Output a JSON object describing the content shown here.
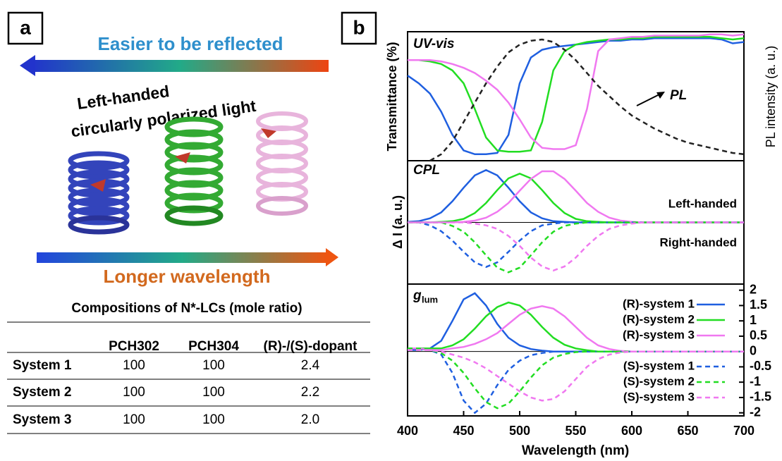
{
  "panel_a": {
    "label": "a",
    "top_arrow_text": "Easier to be reflected",
    "helix_text_1": "Left-handed",
    "helix_text_2": "circularly polarized light",
    "bottom_arrow_text": "Longer wavelength",
    "table": {
      "title": "Compositions of N*-LCs (mole ratio)",
      "columns": [
        "PCH302",
        "PCH304",
        "(R)-/(S)-dopant"
      ],
      "rows": [
        [
          "System 1",
          "100",
          "100",
          "2.4"
        ],
        [
          "System 2",
          "100",
          "100",
          "2.2"
        ],
        [
          "System 3",
          "100",
          "100",
          "2.0"
        ]
      ]
    }
  },
  "panel_b_label": "b",
  "chart_data": [
    {
      "type": "line",
      "title": "UV-vis",
      "ylabel": "Transmittance (%)",
      "y2label": "PL intensity (a. u.)",
      "annotation": "PL",
      "ylim": [
        0,
        100
      ],
      "y2lim": [
        0,
        1
      ],
      "x": [
        400,
        410,
        420,
        430,
        440,
        450,
        460,
        470,
        480,
        490,
        500,
        510,
        520,
        530,
        540,
        550,
        560,
        570,
        580,
        590,
        600,
        610,
        620,
        630,
        640,
        650,
        660,
        670,
        680,
        690,
        700
      ],
      "series": [
        {
          "color": "#1f5fe0",
          "style": "solid",
          "values": [
            66,
            60,
            52,
            38,
            20,
            8,
            5,
            5,
            6,
            20,
            60,
            80,
            86,
            88,
            89,
            90,
            91,
            92,
            93,
            93,
            94,
            94,
            95,
            95,
            95,
            95,
            95,
            95,
            94,
            91,
            92
          ]
        },
        {
          "color": "#22dd22",
          "style": "solid",
          "values": [
            78,
            78,
            77,
            75,
            70,
            60,
            40,
            18,
            8,
            7,
            7,
            8,
            30,
            70,
            85,
            90,
            92,
            93,
            94,
            94,
            95,
            95,
            96,
            96,
            96,
            96,
            96,
            96,
            95,
            94,
            95
          ]
        },
        {
          "color": "#f078f0",
          "style": "solid",
          "values": [
            78,
            78,
            78,
            77,
            75,
            72,
            68,
            62,
            55,
            45,
            32,
            18,
            10,
            9,
            9,
            12,
            40,
            85,
            94,
            95,
            96,
            96,
            97,
            97,
            97,
            97,
            97,
            98,
            98,
            97,
            98
          ]
        },
        {
          "color": "#222222",
          "style": "dashed",
          "axis": "y2",
          "values": [
            null,
            null,
            0,
            0.05,
            0.15,
            0.3,
            0.45,
            0.6,
            0.73,
            0.84,
            0.9,
            0.93,
            0.94,
            0.92,
            0.86,
            0.78,
            0.68,
            0.58,
            0.5,
            0.42,
            0.35,
            0.3,
            0.25,
            0.21,
            0.17,
            0.14,
            0.12,
            0.1,
            0.08,
            0.06,
            0.05
          ]
        }
      ]
    },
    {
      "type": "line",
      "title": "CPL",
      "ylabel": "Δ I  (a. u.)",
      "annotations": [
        "Left-handed",
        "Right-handed"
      ],
      "ylim": [
        -1.05,
        1.05
      ],
      "x": [
        400,
        410,
        420,
        430,
        440,
        450,
        460,
        470,
        480,
        490,
        500,
        510,
        520,
        530,
        540,
        550,
        560,
        570,
        580,
        590,
        600,
        610,
        620,
        630,
        640,
        650,
        660,
        670,
        680,
        690,
        700
      ],
      "series": [
        {
          "color": "#1f5fe0",
          "style": "solid",
          "values": [
            0.01,
            0.02,
            0.07,
            0.17,
            0.36,
            0.59,
            0.8,
            0.89,
            0.8,
            0.59,
            0.36,
            0.17,
            0.07,
            0.02,
            0.01,
            0,
            0,
            0,
            0,
            0,
            0,
            0,
            0,
            0,
            0,
            0,
            0,
            0,
            0,
            0,
            0
          ]
        },
        {
          "color": "#22dd22",
          "style": "solid",
          "values": [
            0,
            0,
            0,
            0.01,
            0.02,
            0.06,
            0.16,
            0.33,
            0.55,
            0.75,
            0.83,
            0.75,
            0.55,
            0.33,
            0.16,
            0.06,
            0.02,
            0.01,
            0,
            0,
            0,
            0,
            0,
            0,
            0,
            0,
            0,
            0,
            0,
            0,
            0
          ]
        },
        {
          "color": "#f078f0",
          "style": "solid",
          "values": [
            0,
            0,
            0,
            0,
            0,
            0.01,
            0.03,
            0.08,
            0.18,
            0.33,
            0.54,
            0.74,
            0.87,
            0.87,
            0.74,
            0.54,
            0.33,
            0.18,
            0.08,
            0.03,
            0.01,
            0,
            0,
            0,
            0,
            0,
            0,
            0,
            0,
            0,
            0
          ]
        },
        {
          "color": "#1f5fe0",
          "style": "dashed",
          "values": [
            0,
            0,
            -0.05,
            -0.15,
            -0.31,
            -0.5,
            -0.68,
            -0.76,
            -0.68,
            -0.5,
            -0.31,
            -0.15,
            -0.05,
            -0.02,
            0,
            0,
            0,
            0,
            0,
            0,
            0,
            0,
            0,
            0,
            0,
            0,
            0,
            0,
            0,
            0,
            0
          ]
        },
        {
          "color": "#22dd22",
          "style": "dashed",
          "values": [
            0,
            0,
            0,
            0,
            -0.06,
            -0.16,
            -0.34,
            -0.56,
            -0.77,
            -0.85,
            -0.77,
            -0.56,
            -0.34,
            -0.16,
            -0.06,
            -0.02,
            0,
            0,
            0,
            0,
            0,
            0,
            0,
            0,
            0,
            0,
            0,
            0,
            0,
            0,
            0
          ]
        },
        {
          "color": "#f078f0",
          "style": "dashed",
          "values": [
            0,
            0,
            0,
            0,
            0,
            0,
            -0.02,
            -0.05,
            -0.11,
            -0.23,
            -0.4,
            -0.6,
            -0.75,
            -0.82,
            -0.75,
            -0.6,
            -0.4,
            -0.23,
            -0.11,
            -0.05,
            -0.02,
            0,
            0,
            0,
            0,
            0,
            0,
            0,
            0,
            0,
            0
          ]
        }
      ]
    },
    {
      "type": "line",
      "title": "g",
      "title_sub": "lum",
      "xlabel": "Wavelength (nm)",
      "legend": "right",
      "xlim": [
        400,
        700
      ],
      "xticks": [
        400,
        450,
        500,
        550,
        600,
        650,
        700
      ],
      "ylim": [
        -2.1,
        2.2
      ],
      "yticks": [
        2,
        1.5,
        1,
        0.5,
        0,
        -0.5,
        -1,
        -1.5,
        -2
      ],
      "x": [
        400,
        410,
        420,
        430,
        440,
        450,
        460,
        470,
        480,
        490,
        500,
        510,
        520,
        530,
        540,
        550,
        560,
        570,
        580,
        590,
        600,
        610,
        620,
        630,
        640,
        650,
        660,
        670,
        680,
        690,
        700
      ],
      "series": [
        {
          "name": "(R)-system 1",
          "color": "#1f5fe0",
          "style": "solid",
          "values": [
            0.05,
            0.05,
            0.1,
            0.35,
            1.0,
            1.7,
            1.9,
            1.5,
            0.9,
            0.45,
            0.2,
            0.08,
            0.03,
            0,
            0,
            0,
            0,
            0,
            0,
            0,
            0,
            0,
            0,
            0,
            0,
            0,
            0,
            0,
            0,
            0,
            0
          ]
        },
        {
          "name": "(R)-system 2",
          "color": "#22dd22",
          "style": "solid",
          "values": [
            0.1,
            0.1,
            0.1,
            0.1,
            0.2,
            0.4,
            0.75,
            1.15,
            1.45,
            1.6,
            1.5,
            1.2,
            0.8,
            0.45,
            0.22,
            0.1,
            0.04,
            0,
            0,
            0,
            0,
            0,
            0,
            0,
            0,
            0,
            0,
            0,
            0,
            0,
            0
          ]
        },
        {
          "name": "(R)-system 3",
          "color": "#f078f0",
          "style": "solid",
          "values": [
            0.1,
            0.1,
            0.05,
            0.05,
            0.1,
            0.15,
            0.25,
            0.4,
            0.6,
            0.9,
            1.2,
            1.4,
            1.48,
            1.4,
            1.15,
            0.8,
            0.45,
            0.2,
            0.08,
            0.02,
            0,
            0,
            0,
            0,
            0,
            0,
            0,
            0,
            0,
            0,
            0
          ]
        },
        {
          "name": "(S)-system 1",
          "color": "#1f5fe0",
          "style": "dashed",
          "values": [
            0.1,
            0.1,
            0.05,
            -0.1,
            -0.7,
            -1.6,
            -2.0,
            -1.7,
            -1.1,
            -0.6,
            -0.3,
            -0.12,
            -0.05,
            0,
            0,
            0,
            0,
            0,
            0,
            0,
            0,
            0,
            0,
            0,
            0,
            0,
            0,
            0,
            0,
            0,
            0
          ]
        },
        {
          "name": "(S)-system 2",
          "color": "#22dd22",
          "style": "dashed",
          "values": [
            0.1,
            0.1,
            0.05,
            -0.05,
            -0.3,
            -0.7,
            -1.2,
            -1.65,
            -1.85,
            -1.7,
            -1.3,
            -0.85,
            -0.45,
            -0.2,
            -0.08,
            -0.02,
            0,
            0,
            0,
            0,
            0,
            0,
            0,
            0,
            0,
            0,
            0,
            0,
            0,
            0,
            0
          ]
        },
        {
          "name": "(S)-system 3",
          "color": "#f078f0",
          "style": "dashed",
          "values": [
            0.05,
            0.05,
            0.05,
            0,
            -0.1,
            -0.2,
            -0.35,
            -0.55,
            -0.8,
            -1.05,
            -1.3,
            -1.5,
            -1.6,
            -1.55,
            -1.3,
            -0.9,
            -0.5,
            -0.25,
            -0.1,
            -0.03,
            0,
            0,
            0,
            0,
            0,
            0,
            0,
            0,
            0,
            0,
            0
          ]
        }
      ]
    }
  ]
}
